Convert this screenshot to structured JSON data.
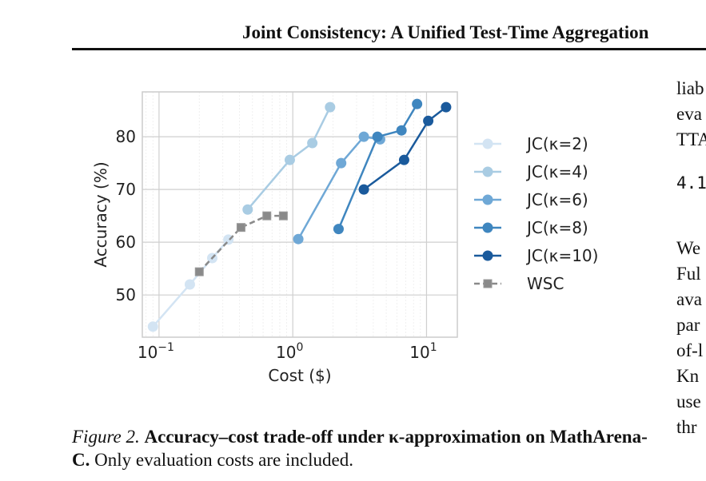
{
  "header": {
    "title": "Joint Consistency: A Unified Test-Time Aggregation"
  },
  "caption": {
    "label": "Figure 2.",
    "bold_text": "Accuracy–cost trade-off under κ-approximation on MathArena-C.",
    "rest_text": " Only evaluation costs are included."
  },
  "right_column": {
    "lines_a": [
      "liab",
      "eva",
      "TTA"
    ],
    "section": "4.1",
    "lines_b": [
      "We",
      "Ful",
      "ava",
      "par",
      "of-l",
      "Kn",
      "use",
      "thr"
    ]
  },
  "chart_data": {
    "type": "line",
    "title": "",
    "xlabel": "Cost ($)",
    "ylabel": "Accuracy (%)",
    "x_scale": "log",
    "xlim": [
      0.075,
      17
    ],
    "ylim": [
      42,
      88.5
    ],
    "x_ticks": [
      {
        "value": 0.1,
        "base": "10",
        "exp": "−1"
      },
      {
        "value": 1,
        "base": "10",
        "exp": "0"
      },
      {
        "value": 10,
        "base": "10",
        "exp": "1"
      }
    ],
    "y_ticks": [
      50,
      60,
      70,
      80
    ],
    "grid": true,
    "legend_position": "right",
    "series": [
      {
        "name": "JC(κ=2)",
        "color": "#d3e4f3",
        "marker": "circle",
        "dash": false,
        "points": [
          [
            0.09,
            44
          ],
          [
            0.17,
            52
          ],
          [
            0.25,
            57
          ],
          [
            0.33,
            60.5
          ]
        ]
      },
      {
        "name": "JC(κ=4)",
        "color": "#a9cce3",
        "marker": "circle",
        "dash": false,
        "points": [
          [
            0.46,
            66.2
          ],
          [
            0.95,
            75.6
          ],
          [
            1.4,
            78.8
          ],
          [
            1.9,
            85.6
          ]
        ]
      },
      {
        "name": "JC(κ=6)",
        "color": "#6fa8d6",
        "marker": "circle",
        "dash": false,
        "points": [
          [
            1.1,
            60.6
          ],
          [
            2.3,
            75
          ],
          [
            3.4,
            80
          ],
          [
            4.5,
            79.5
          ]
        ]
      },
      {
        "name": "JC(κ=8)",
        "color": "#3f86bf",
        "marker": "circle",
        "dash": false,
        "points": [
          [
            2.2,
            62.5
          ],
          [
            4.3,
            80
          ],
          [
            6.5,
            81.2
          ],
          [
            8.5,
            86.2
          ]
        ]
      },
      {
        "name": "JC(κ=10)",
        "color": "#1a5a9c",
        "marker": "circle",
        "dash": false,
        "points": [
          [
            3.4,
            70
          ],
          [
            6.8,
            75.6
          ],
          [
            10.3,
            83
          ],
          [
            14,
            85.6
          ]
        ]
      },
      {
        "name": "WSC",
        "color": "#8a8a8a",
        "marker": "square",
        "dash": true,
        "points": [
          [
            0.2,
            54.4
          ],
          [
            0.41,
            62.8
          ],
          [
            0.64,
            65
          ],
          [
            0.85,
            65
          ]
        ]
      }
    ]
  }
}
